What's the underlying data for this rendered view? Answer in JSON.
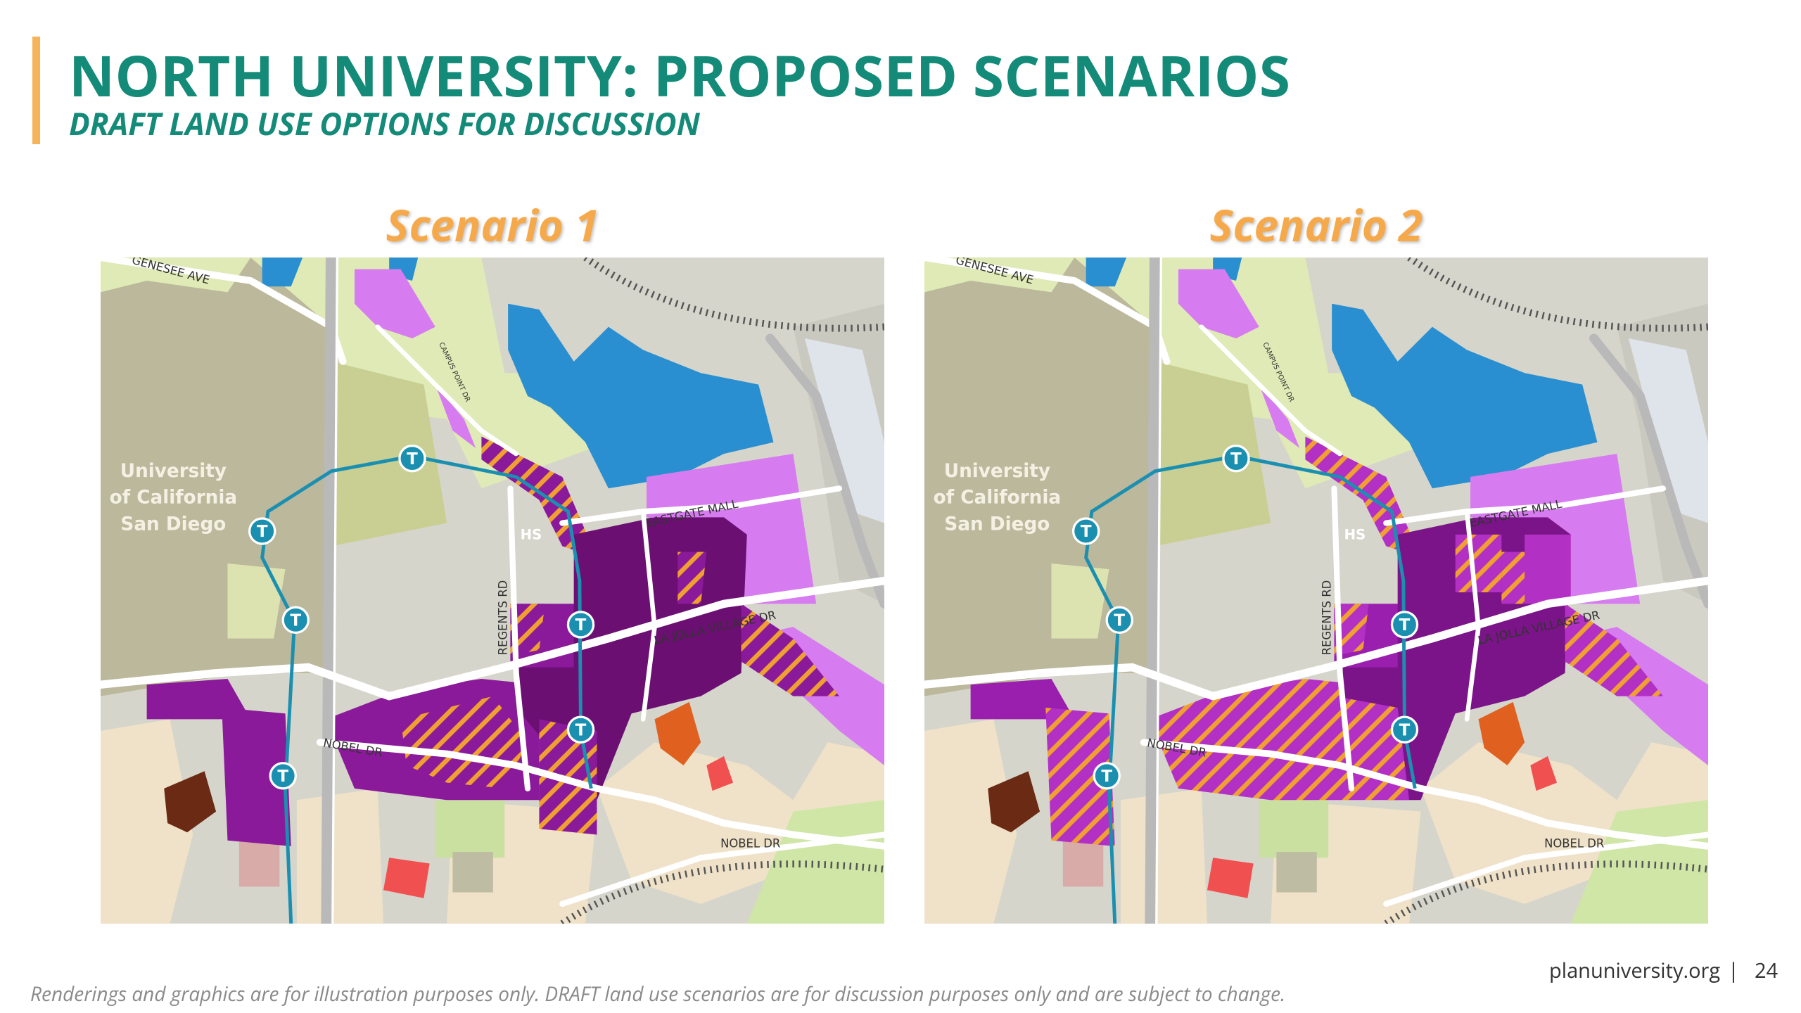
{
  "header": {
    "title": "NORTH UNIVERSITY: PROPOSED SCENARIOS",
    "subtitle": "DRAFT LAND USE OPTIONS FOR DISCUSSION"
  },
  "maps": [
    {
      "title": "Scenario 1",
      "labels": {
        "genesee": "GENESEE AVE",
        "campus": [
          "University",
          "of California",
          "San Diego"
        ],
        "hs": "HS",
        "eastgate": "EASTGATE MALL",
        "regents": "REGENTS RD",
        "lajolla": "LA JOLLA VILLAGE DR",
        "nobel_west": "NOBEL DR",
        "nobel_east": "NOBEL DR",
        "campus_point": "CAMPUS POINT DR",
        "station": "T"
      }
    },
    {
      "title": "Scenario 2",
      "labels": {
        "genesee": "GENESEE AVE",
        "campus": [
          "University",
          "of California",
          "San Diego"
        ],
        "hs": "HS",
        "eastgate": "EASTGATE MALL",
        "regents": "REGENTS RD",
        "lajolla": "LA JOLLA VILLAGE DR",
        "nobel_west": "NOBEL DR",
        "nobel_east": "NOBEL DR",
        "campus_point": "CAMPUS POINT DR",
        "station": "T"
      }
    }
  ],
  "footer": {
    "disclaimer": "Renderings and graphics are for illustration purposes only. DRAFT land use scenarios are for discussion purposes only and are subject to change.",
    "site": "planuniversity.org",
    "separator": "|",
    "page": "24"
  }
}
